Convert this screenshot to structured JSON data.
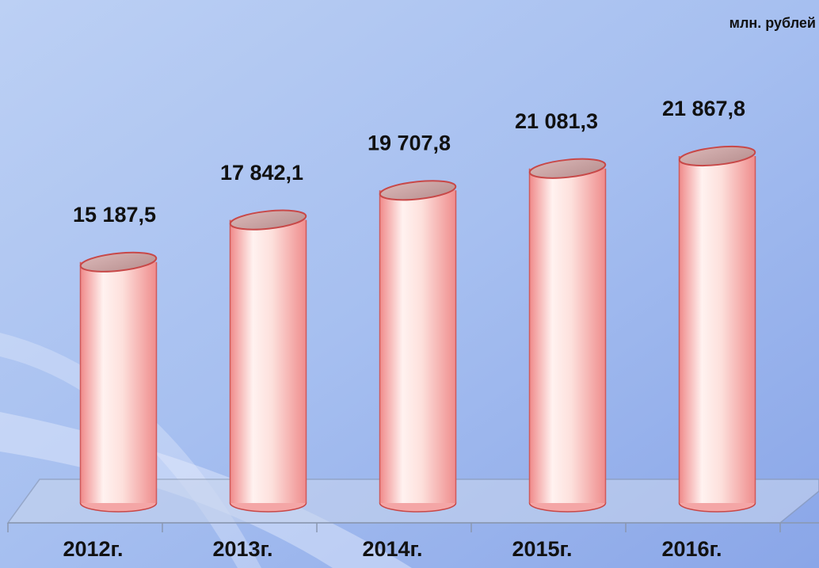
{
  "chart_data": {
    "type": "bar",
    "subtitle": "млн. рублей",
    "categories": [
      "2012г.",
      "2013г.",
      "2014г.",
      "2015г.",
      "2016г."
    ],
    "values": [
      15187.5,
      17842.1,
      19707.8,
      21081.3,
      21867.8
    ],
    "value_labels": [
      "15 187,5",
      "17 842,1",
      "19 707,8",
      "21 081,3",
      "21 867,8"
    ],
    "color": "#f4a6a6"
  }
}
